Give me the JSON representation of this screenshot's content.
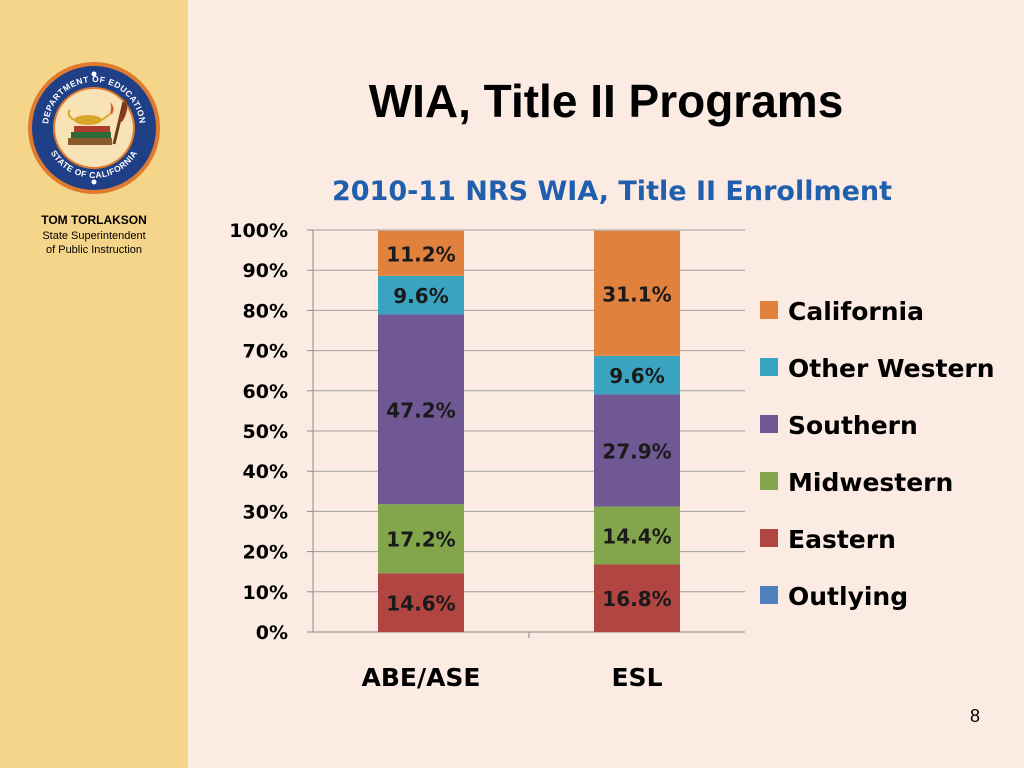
{
  "sidebar": {
    "seal_text_top": "DEPARTMENT OF EDUCATION",
    "seal_text_bottom": "STATE OF CALIFORNIA",
    "name": "TOM TORLAKSON",
    "role_line1": "State Superintendent",
    "role_line2": "of Public Instruction"
  },
  "slide": {
    "title": "WIA, Title II Programs",
    "page_number": "8"
  },
  "chart_data": {
    "type": "bar",
    "stacked": true,
    "title": "2010-11 NRS WIA, Title II Enrollment",
    "xlabel": "",
    "ylabel": "",
    "ylim": [
      0,
      100
    ],
    "y_ticks": [
      "0%",
      "10%",
      "20%",
      "30%",
      "40%",
      "50%",
      "60%",
      "70%",
      "80%",
      "90%",
      "100%"
    ],
    "grid": true,
    "legend_position": "right",
    "categories": [
      "ABE/ASE",
      "ESL"
    ],
    "series": [
      {
        "name": "Outlying",
        "color": "#4f81bd",
        "values": [
          0,
          0
        ],
        "labels": [
          "",
          ""
        ]
      },
      {
        "name": "Eastern",
        "color": "#b04542",
        "values": [
          14.6,
          16.8
        ],
        "labels": [
          "14.6%",
          "16.8%"
        ]
      },
      {
        "name": "Midwestern",
        "color": "#83a54b",
        "values": [
          17.2,
          14.4
        ],
        "labels": [
          "17.2%",
          "14.4%"
        ]
      },
      {
        "name": "Southern",
        "color": "#6f5893",
        "values": [
          47.2,
          27.9
        ],
        "labels": [
          "47.2%",
          "27.9%"
        ]
      },
      {
        "name": "Other Western",
        "color": "#3aa3c0",
        "values": [
          9.6,
          9.6
        ],
        "labels": [
          "9.6%",
          "9.6%"
        ]
      },
      {
        "name": "California",
        "color": "#e0823d",
        "values": [
          11.2,
          31.1
        ],
        "labels": [
          "11.2%",
          "31.1%"
        ]
      }
    ],
    "legend_order": [
      "California",
      "Other Western",
      "Southern",
      "Midwestern",
      "Eastern",
      "Outlying"
    ]
  }
}
